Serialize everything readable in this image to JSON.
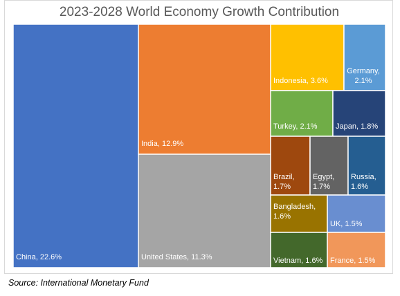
{
  "chart_data": {
    "type": "treemap",
    "title": "2023-2028 World Economy Growth Contribution",
    "source": "Source: International Monetary Fund",
    "items": [
      {
        "name": "China",
        "value": 22.6,
        "label": "China, 22.6%",
        "color": "#4472C4"
      },
      {
        "name": "India",
        "value": 12.9,
        "label": "India, 12.9%",
        "color": "#ED7D31"
      },
      {
        "name": "United States",
        "value": 11.3,
        "label": "United States, 11.3%",
        "color": "#A5A5A5"
      },
      {
        "name": "Indonesia",
        "value": 3.6,
        "label": "Indonesia, 3.6%",
        "color": "#FFC000"
      },
      {
        "name": "Germany",
        "value": 2.1,
        "label": "Germany, 2.1%",
        "color": "#5B9BD5"
      },
      {
        "name": "Turkey",
        "value": 2.1,
        "label": "Turkey, 2.1%",
        "color": "#70AD47"
      },
      {
        "name": "Japan",
        "value": 1.8,
        "label": "Japan, 1.8%",
        "color": "#264478"
      },
      {
        "name": "Brazil",
        "value": 1.7,
        "label": "Brazil, 1.7%",
        "color": "#9E480E"
      },
      {
        "name": "Egypt",
        "value": 1.7,
        "label": "Egypt, 1.7%",
        "color": "#636363"
      },
      {
        "name": "Russia",
        "value": 1.6,
        "label": "Russia, 1.6%",
        "color": "#255E91"
      },
      {
        "name": "Bangladesh",
        "value": 1.6,
        "label": "Bangladesh, 1.6%",
        "color": "#997300"
      },
      {
        "name": "UK",
        "value": 1.5,
        "label": "UK, 1.5%",
        "color": "#698ED0"
      },
      {
        "name": "Vietnam",
        "value": 1.6,
        "label": "Vietnam, 1.6%",
        "color": "#43682B"
      },
      {
        "name": "France",
        "value": 1.5,
        "label": "France, 1.5%",
        "color": "#F1975A"
      }
    ]
  }
}
